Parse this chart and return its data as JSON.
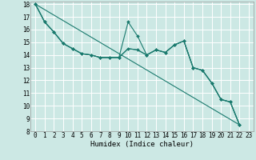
{
  "xlabel": "Humidex (Indice chaleur)",
  "bg_color": "#cce8e4",
  "grid_color": "#ffffff",
  "line_color": "#1a7a6e",
  "xlim": [
    -0.5,
    23.5
  ],
  "ylim": [
    8,
    18.2
  ],
  "x_ticks": [
    0,
    1,
    2,
    3,
    4,
    5,
    6,
    7,
    8,
    9,
    10,
    11,
    12,
    13,
    14,
    15,
    16,
    17,
    18,
    19,
    20,
    21,
    22,
    23
  ],
  "y_ticks": [
    8,
    9,
    10,
    11,
    12,
    13,
    14,
    15,
    16,
    17,
    18
  ],
  "series": [
    {
      "x": [
        0,
        1,
        2,
        3,
        4,
        5,
        6,
        7,
        8,
        9,
        10,
        11,
        12,
        13,
        14,
        15,
        16,
        17,
        18,
        19,
        20,
        21,
        22
      ],
      "y": [
        18.0,
        16.6,
        15.8,
        14.9,
        14.5,
        14.1,
        14.0,
        13.8,
        13.8,
        13.8,
        14.5,
        14.4,
        14.0,
        14.4,
        14.2,
        14.8,
        15.1,
        13.0,
        12.8,
        11.8,
        10.5,
        10.3,
        8.5
      ],
      "marker": true
    },
    {
      "x": [
        0,
        1,
        2,
        3,
        4,
        5,
        6,
        7,
        8,
        9,
        10,
        11,
        12,
        13,
        14,
        15,
        16,
        17,
        18,
        19,
        20,
        21,
        22
      ],
      "y": [
        18.0,
        16.6,
        15.8,
        14.9,
        14.5,
        14.1,
        14.0,
        13.8,
        13.8,
        13.8,
        16.6,
        15.5,
        14.0,
        14.4,
        14.2,
        14.8,
        15.1,
        13.0,
        12.8,
        11.8,
        10.5,
        10.3,
        8.5
      ],
      "marker": true
    },
    {
      "x": [
        0,
        1,
        2,
        3,
        4,
        5,
        6,
        7,
        8,
        9,
        10,
        11,
        12,
        13,
        14,
        15,
        16,
        17,
        18,
        19,
        20,
        21,
        22
      ],
      "y": [
        18.0,
        16.6,
        15.8,
        14.9,
        14.5,
        14.1,
        14.0,
        13.8,
        13.8,
        13.8,
        14.5,
        14.4,
        14.0,
        14.4,
        14.2,
        14.8,
        15.1,
        13.0,
        12.8,
        11.8,
        10.5,
        10.3,
        8.5
      ],
      "marker": false
    },
    {
      "x": [
        0,
        22
      ],
      "y": [
        18.0,
        8.5
      ],
      "marker": false
    }
  ],
  "tick_fontsize": 5.5,
  "label_fontsize": 6.5
}
